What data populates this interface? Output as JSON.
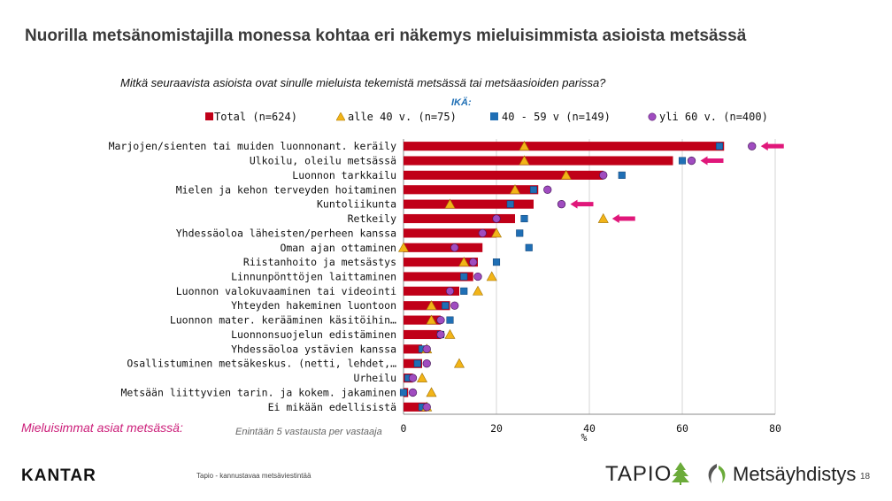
{
  "title": "Nuorilla metsänomistajilla monessa kohtaa eri näkemys mieluisimmista asioista metsässä",
  "question": "Mitkä seuraavista asioista ovat sinulle mieluista tekemistä metsässä tai metsäasioiden parissa?",
  "age_label": "IKÄ:",
  "favorites_label": "Mieluisimmat asiat metsässä:",
  "note": "Enintään 5 vastausta per vastaaja",
  "footer": {
    "kantar": "KANTAR",
    "text": "Tapio - kannustavaa metsäviestintää",
    "tapio": "TAPIO",
    "metsayhdistys": "Metsäyhdistys",
    "page": "18"
  },
  "colors": {
    "total": "#c00018",
    "under40": "#f2b418",
    "age40_59": "#1f6fb5",
    "over60": "#a04cc0",
    "arrow": "#e0177a"
  },
  "chart_data": {
    "type": "bar",
    "orientation": "horizontal",
    "xlabel": "%",
    "xlim": [
      0,
      80
    ],
    "xticks": [
      "0",
      "20",
      "40",
      "60",
      "80"
    ],
    "grid": true,
    "legend_position": "top",
    "categories": [
      "Marjojen/sienten tai muiden luonnonant. keräily",
      "Ulkoilu, oleilu metsässä",
      "Luonnon tarkkailu",
      "Mielen ja kehon terveyden hoitaminen",
      "Kuntoliikunta",
      "Retkeily",
      "Yhdessäoloa läheisten/perheen kanssa",
      "Oman ajan ottaminen",
      "Riistanhoito ja metsästys",
      "Linnunpönttöjen laittaminen",
      "Luonnon valokuvaaminen tai videointi",
      "Yhteyden hakeminen luontoon",
      "Luonnon mater. kerääminen käsitöihin…",
      "Luonnonsuojelun edistäminen",
      "Yhdessäoloa ystävien kanssa",
      "Osallistuminen metsäkeskus. (netti, lehdet,…",
      "Urheilu",
      "Metsään liittyvien tarin. ja kokem. jakaminen",
      "Ei mikään edellisistä"
    ],
    "series": [
      {
        "name": "Total (n=624)",
        "marker": "bar",
        "values": [
          69,
          58,
          43,
          29,
          28,
          24,
          20,
          17,
          16,
          15,
          12,
          10,
          8,
          8,
          4,
          4,
          2,
          1,
          5
        ]
      },
      {
        "name": "alle 40 v. (n=75)",
        "marker": "triangle",
        "values": [
          26,
          26,
          35,
          24,
          10,
          43,
          20,
          0,
          13,
          19,
          16,
          6,
          6,
          10,
          5,
          12,
          4,
          6,
          5
        ]
      },
      {
        "name": "40 - 59 v (n=149)",
        "marker": "square",
        "values": [
          68,
          60,
          47,
          28,
          23,
          26,
          25,
          27,
          20,
          13,
          13,
          9,
          10,
          8,
          4,
          3,
          1,
          0,
          4
        ]
      },
      {
        "name": "yli 60 v. (n=400)",
        "marker": "circle",
        "values": [
          75,
          62,
          43,
          31,
          34,
          20,
          17,
          11,
          15,
          16,
          10,
          11,
          8,
          8,
          5,
          5,
          2,
          2,
          5
        ]
      }
    ],
    "highlighted_categories": [
      0,
      1,
      4,
      5
    ]
  }
}
